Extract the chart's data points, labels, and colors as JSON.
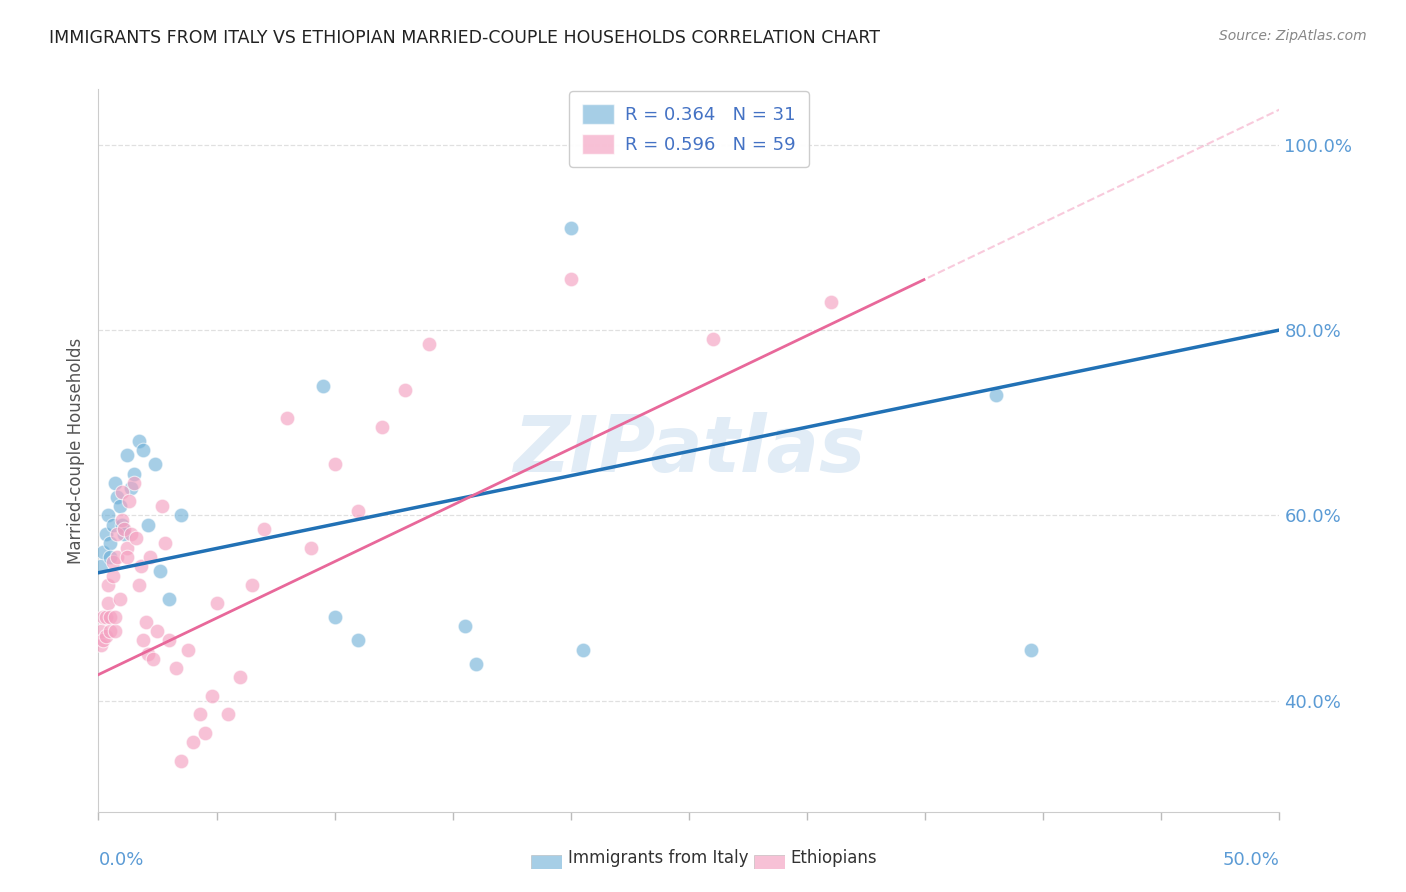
{
  "title": "IMMIGRANTS FROM ITALY VS ETHIOPIAN MARRIED-COUPLE HOUSEHOLDS CORRELATION CHART",
  "source": "Source: ZipAtlas.com",
  "ylabel": "Married-couple Households",
  "xlim": [
    0.0,
    0.5
  ],
  "ylim": [
    0.28,
    1.06
  ],
  "ytick_values": [
    0.4,
    0.6,
    0.8,
    1.0
  ],
  "italy_x": [
    0.001,
    0.002,
    0.003,
    0.004,
    0.005,
    0.005,
    0.006,
    0.007,
    0.008,
    0.009,
    0.01,
    0.011,
    0.012,
    0.014,
    0.015,
    0.017,
    0.019,
    0.021,
    0.024,
    0.026,
    0.03,
    0.035,
    0.095,
    0.1,
    0.11,
    0.155,
    0.16,
    0.2,
    0.205,
    0.38,
    0.395
  ],
  "italy_y": [
    0.545,
    0.56,
    0.58,
    0.6,
    0.57,
    0.555,
    0.59,
    0.635,
    0.62,
    0.61,
    0.59,
    0.58,
    0.665,
    0.63,
    0.645,
    0.68,
    0.67,
    0.59,
    0.655,
    0.54,
    0.51,
    0.6,
    0.74,
    0.49,
    0.465,
    0.48,
    0.44,
    0.91,
    0.455,
    0.73,
    0.455
  ],
  "eth_x": [
    0.001,
    0.001,
    0.002,
    0.002,
    0.003,
    0.003,
    0.004,
    0.004,
    0.005,
    0.005,
    0.006,
    0.006,
    0.007,
    0.007,
    0.008,
    0.008,
    0.009,
    0.01,
    0.01,
    0.011,
    0.012,
    0.012,
    0.013,
    0.014,
    0.015,
    0.016,
    0.017,
    0.018,
    0.019,
    0.02,
    0.021,
    0.022,
    0.023,
    0.025,
    0.027,
    0.028,
    0.03,
    0.033,
    0.035,
    0.038,
    0.04,
    0.043,
    0.045,
    0.048,
    0.05,
    0.055,
    0.06,
    0.065,
    0.07,
    0.08,
    0.09,
    0.1,
    0.11,
    0.12,
    0.13,
    0.14,
    0.2,
    0.26,
    0.31
  ],
  "eth_y": [
    0.46,
    0.475,
    0.49,
    0.465,
    0.47,
    0.49,
    0.525,
    0.505,
    0.475,
    0.49,
    0.535,
    0.55,
    0.475,
    0.49,
    0.58,
    0.555,
    0.51,
    0.595,
    0.625,
    0.585,
    0.565,
    0.555,
    0.615,
    0.58,
    0.635,
    0.575,
    0.525,
    0.545,
    0.465,
    0.485,
    0.45,
    0.555,
    0.445,
    0.475,
    0.61,
    0.57,
    0.465,
    0.435,
    0.335,
    0.455,
    0.355,
    0.385,
    0.365,
    0.405,
    0.505,
    0.385,
    0.425,
    0.525,
    0.585,
    0.705,
    0.565,
    0.655,
    0.605,
    0.695,
    0.735,
    0.785,
    0.855,
    0.79,
    0.83
  ],
  "italy_color": "#6baed6",
  "eth_color": "#f4a0c0",
  "italy_line_color": "#2171b5",
  "eth_line_color": "#e8689a",
  "eth_dash_color": "#f4a0c0",
  "axis_label_color": "#5b9bd5",
  "title_color": "#222222",
  "source_color": "#888888",
  "grid_color": "#e0e0e0",
  "watermark_color": "#dce9f5",
  "bg_color": "#ffffff",
  "legend_label_italy": "R = 0.364   N = 31",
  "legend_label_eth": "R = 0.596   N = 59",
  "legend_text_color": "#4472c4",
  "bottom_legend_italy": "Immigrants from Italy",
  "bottom_legend_eth": "Ethiopians",
  "italy_line_intercept": 0.538,
  "italy_line_slope": 0.524,
  "eth_line_intercept": 0.428,
  "eth_line_slope": 1.22
}
